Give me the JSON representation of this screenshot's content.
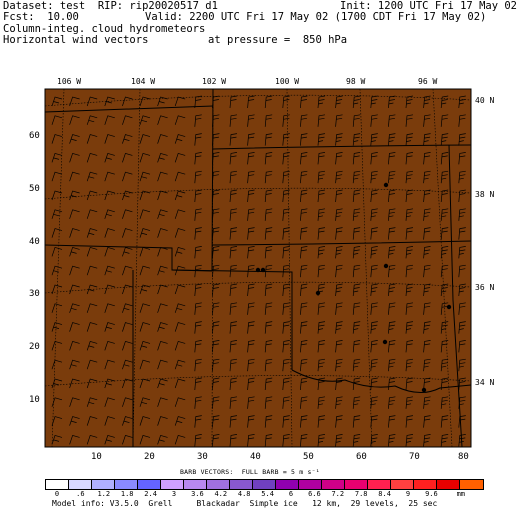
{
  "header": {
    "line1_left": "Dataset: test  RIP: rip20020517 d1",
    "line1_right": "Init: 1200 UTC Fri 17 May 02",
    "line2_left": "Fcst:  10.00",
    "line2_right": "Valid: 2200 UTC Fri 17 May 02 (1700 CDT Fri 17 May 02)",
    "line3": "Column-integ. cloud hydrometeors",
    "line4_left": "Horizontal wind vectors",
    "line4_right": "at pressure =  850 hPa"
  },
  "map": {
    "background_color": "#7a3c0c",
    "lon_labels": [
      "106 W",
      "104 W",
      "102 W",
      "100 W",
      "98 W",
      "96 W"
    ],
    "lat_labels": [
      "40 N",
      "38 N",
      "36 N",
      "34 N"
    ],
    "x_grid_labels": [
      "10",
      "20",
      "30",
      "40",
      "50",
      "60",
      "70",
      "80"
    ],
    "y_grid_labels": [
      "10",
      "20",
      "30",
      "40",
      "50",
      "60"
    ],
    "x_range": [
      1,
      81
    ],
    "y_range": [
      1,
      69
    ]
  },
  "legend": {
    "barb_title": "BARB VECTORS:  FULL BARB = 5 m s⁻¹",
    "colors": [
      "#ffffff",
      "#d8d8ff",
      "#b0b0ff",
      "#8a8aff",
      "#6464ff",
      "#d0a0ff",
      "#b888f0",
      "#a070e0",
      "#8858d0",
      "#7040c0",
      "#9000b0",
      "#b000a0",
      "#d00088",
      "#e80070",
      "#ff2050",
      "#ff4040",
      "#ff2020",
      "#e80000",
      "#ff6000"
    ],
    "tick_labels": [
      "0",
      ".6",
      "1.2",
      "1.8",
      "2.4",
      "3",
      "3.6",
      "4.2",
      "4.8",
      "5.4",
      "6",
      "6.6",
      "7.2",
      "7.8",
      "8.4",
      "9",
      "9.6",
      "mm"
    ]
  },
  "model_info": "Model info: V3.5.0  Grell     Blackadar  Simple ice   12 km,  29 levels,  25 sec"
}
